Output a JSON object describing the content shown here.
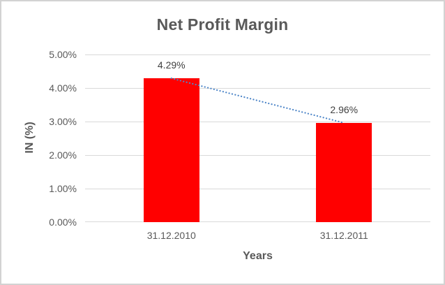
{
  "chart_data": {
    "type": "bar",
    "title": "Net Profit Margin",
    "xlabel": "Years",
    "ylabel": "IN (%)",
    "categories": [
      "31.12.2010",
      "31.12.2011"
    ],
    "series": [
      {
        "name": "Net Profit Margin",
        "values": [
          4.29,
          2.96
        ]
      }
    ],
    "data_labels": [
      "4.29%",
      "2.96%"
    ],
    "y_ticks": [
      {
        "value": 0,
        "label": "0.00%"
      },
      {
        "value": 1,
        "label": "1.00%"
      },
      {
        "value": 2,
        "label": "2.00%"
      },
      {
        "value": 3,
        "label": "3.00%"
      },
      {
        "value": 4,
        "label": "4.00%"
      },
      {
        "value": 5,
        "label": "5.00%"
      }
    ],
    "ylim": [
      0,
      5
    ],
    "grid": true,
    "legend": false,
    "trendline": {
      "type": "linear",
      "style": "dotted",
      "points": [
        4.29,
        2.96
      ]
    },
    "colors": {
      "bar": "#FF0000",
      "trendline": "#4E86C8",
      "title_text": "#595959",
      "axis_text": "#595959",
      "data_label_text": "#404040",
      "gridline": "#D9D9D9",
      "frame_border": "#D2D2D2",
      "background": "#FFFFFF"
    }
  }
}
